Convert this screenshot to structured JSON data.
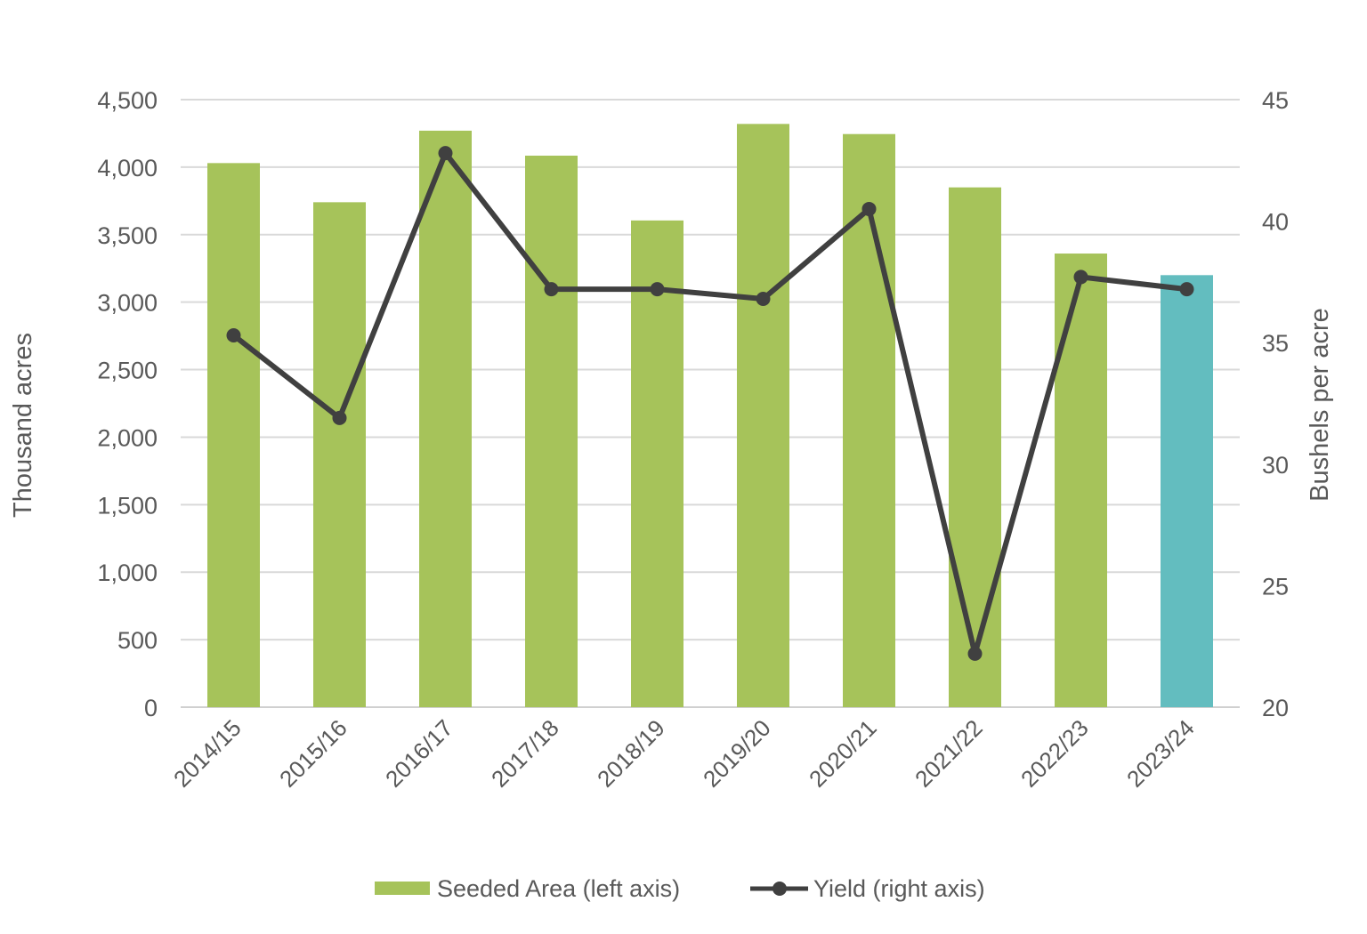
{
  "chart_data": {
    "type": "bar+line",
    "title": "",
    "categories": [
      "2014/15",
      "2015/16",
      "2016/17",
      "2017/18",
      "2018/19",
      "2019/20",
      "2020/21",
      "2021/22",
      "2022/23",
      "2023/24"
    ],
    "series": [
      {
        "name": "Seeded Area (left axis)",
        "type": "bar",
        "axis": "left",
        "values": [
          4030,
          3740,
          4270,
          4085,
          3605,
          4320,
          4245,
          3850,
          3360,
          3200
        ],
        "color": "#A6C35A",
        "highlight_last_color": "#63BDBF"
      },
      {
        "name": "Yield (right axis)",
        "type": "line",
        "axis": "right",
        "values": [
          35.3,
          31.9,
          42.8,
          37.2,
          37.2,
          36.8,
          40.5,
          22.2,
          37.7,
          37.2
        ],
        "color": "#404040"
      }
    ],
    "ylabel_left": "Thousand acres",
    "ylabel_right": "Bushels per acre",
    "ylim_left": [
      0,
      4500
    ],
    "ylim_right": [
      20,
      45
    ],
    "yticks_left": [
      "0",
      "500",
      "1,000",
      "1,500",
      "2,000",
      "2,500",
      "3,000",
      "3,500",
      "4,000",
      "4,500"
    ],
    "yticks_right": [
      "20",
      "25",
      "30",
      "35",
      "40",
      "45"
    ],
    "grid": true,
    "legend_position": "bottom"
  }
}
